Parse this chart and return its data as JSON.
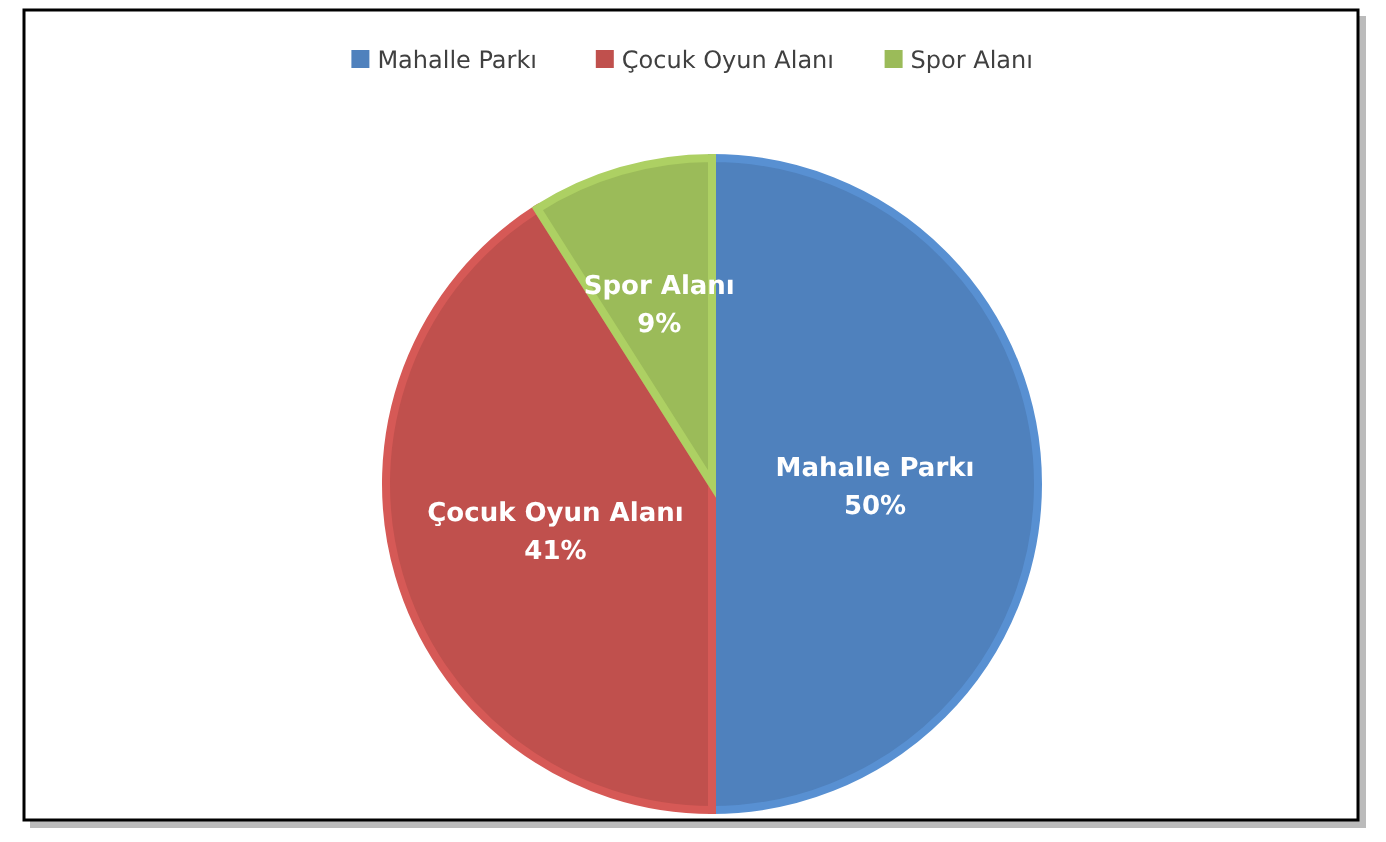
{
  "chart_data": {
    "type": "pie",
    "categories": [
      "Mahalle Parkı",
      "Çocuk Oyun Alanı",
      "Spor Alanı"
    ],
    "values": [
      50,
      41,
      9
    ],
    "colors": [
      "#4f81bd",
      "#c0504d",
      "#9bbb59"
    ],
    "value_labels": [
      "50%",
      "41%",
      "9%"
    ],
    "legend": "top"
  }
}
